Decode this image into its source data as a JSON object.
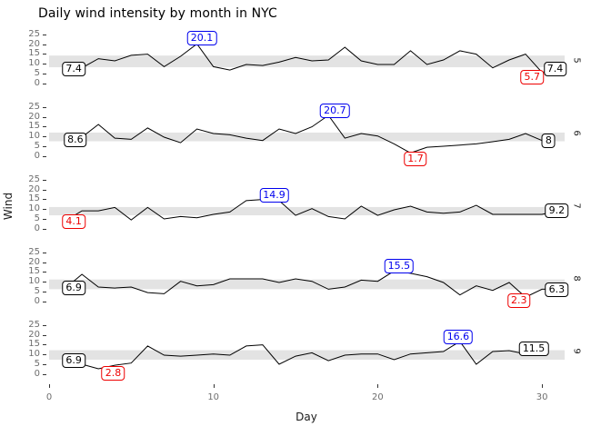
{
  "title": "Daily wind intensity by month in NYC",
  "colors": {
    "blue": "#0000ee",
    "red": "#ee0000",
    "black": "#000000",
    "band": "#e3e3e3",
    "line": "#000000",
    "axis_text": "#6e6e6e",
    "tick_mark": "#333333",
    "strip_text": "#1a1a1a"
  },
  "chart_data": {
    "type": "line",
    "title": "Daily wind intensity by month in NYC",
    "xlabel": "Day",
    "ylabel": "Wind",
    "x_ticks": [
      0,
      10,
      20,
      30
    ],
    "y_ticks": [
      25,
      20,
      15,
      10,
      5,
      0
    ],
    "x_range": [
      0,
      31.3
    ],
    "y_range": [
      -5,
      28.5
    ],
    "grid": "off",
    "legend": "none",
    "facet_side": "right",
    "facets": [
      {
        "month": "5",
        "days": "1-31",
        "values": [
          7.4,
          8.0,
          12.6,
          11.5,
          14.3,
          14.9,
          8.6,
          13.8,
          20.1,
          8.6,
          6.9,
          9.7,
          9.2,
          10.9,
          13.2,
          11.5,
          12.0,
          18.4,
          11.5,
          9.7,
          9.7,
          16.6,
          9.7,
          12.0,
          16.6,
          14.9,
          8.0,
          12.0,
          14.9,
          5.7,
          7.4
        ],
        "band": [
          8.3,
          14.2
        ],
        "labels": [
          {
            "text": "7.4",
            "kind": "first",
            "color": "black",
            "day": 1,
            "value": 7.4,
            "cx": 1.5,
            "cy": 7.2
          },
          {
            "text": "20.1",
            "kind": "max",
            "color": "blue",
            "day": 9,
            "value": 20.1,
            "cx": 9.3,
            "cy": 23.0
          },
          {
            "text": "5.7",
            "kind": "min",
            "color": "red",
            "day": 30,
            "value": 5.7,
            "cx": 29.4,
            "cy": 3.4
          },
          {
            "text": "7.4",
            "kind": "last",
            "color": "black",
            "day": 31,
            "value": 7.4,
            "cx": 30.8,
            "cy": 7.3
          }
        ]
      },
      {
        "month": "6",
        "days": "1-30",
        "values": [
          8.6,
          9.7,
          16.1,
          9.2,
          8.6,
          14.3,
          9.7,
          6.9,
          13.8,
          11.5,
          10.9,
          9.2,
          8.0,
          13.8,
          11.5,
          14.9,
          20.7,
          9.2,
          11.5,
          10.3,
          6.3,
          1.7,
          4.6,
          5.1,
          5.7,
          6.3,
          7.4,
          8.6,
          11.5,
          8.0
        ],
        "band": [
          7.6,
          12.0
        ],
        "labels": [
          {
            "text": "8.6",
            "kind": "first",
            "color": "black",
            "day": 1,
            "value": 8.6,
            "cx": 1.6,
            "cy": 8.4
          },
          {
            "text": "20.7",
            "kind": "max",
            "color": "blue",
            "day": 17,
            "value": 20.7,
            "cx": 17.4,
            "cy": 23.2
          },
          {
            "text": "1.7",
            "kind": "min",
            "color": "red",
            "day": 22,
            "value": 1.7,
            "cx": 22.3,
            "cy": -1.2
          },
          {
            "text": "8",
            "kind": "last",
            "color": "black",
            "day": 30,
            "value": 8.0,
            "cx": 30.4,
            "cy": 7.9
          }
        ]
      },
      {
        "month": "7",
        "days": "1-31",
        "values": [
          4.1,
          9.2,
          9.2,
          10.9,
          4.6,
          10.9,
          5.1,
          6.3,
          5.7,
          7.4,
          8.6,
          14.3,
          14.9,
          14.3,
          6.9,
          10.3,
          6.3,
          5.1,
          11.5,
          6.9,
          9.7,
          11.5,
          8.6,
          8.0,
          8.6,
          12.0,
          7.4,
          7.4,
          7.4,
          7.4,
          9.2
        ],
        "band": [
          6.9,
          11.1
        ],
        "labels": [
          {
            "text": "4.1",
            "kind": "first-min",
            "color": "red",
            "day": 1,
            "value": 4.1,
            "cx": 1.5,
            "cy": 3.9
          },
          {
            "text": "14.9",
            "kind": "max",
            "color": "blue",
            "day": 13,
            "value": 14.9,
            "cx": 13.7,
            "cy": 16.9
          },
          {
            "text": "9.2",
            "kind": "last",
            "color": "black",
            "day": 31,
            "value": 9.2,
            "cx": 30.9,
            "cy": 9.1
          }
        ]
      },
      {
        "month": "8",
        "days": "1-31",
        "values": [
          6.9,
          13.8,
          7.4,
          6.9,
          7.4,
          4.6,
          4.0,
          10.3,
          8.0,
          8.6,
          11.5,
          11.5,
          11.5,
          9.7,
          11.5,
          10.3,
          6.3,
          7.4,
          10.9,
          10.3,
          15.5,
          14.3,
          12.6,
          9.7,
          3.4,
          8.0,
          5.7,
          9.7,
          2.3,
          6.3,
          6.3
        ],
        "band": [
          6.3,
          11.2
        ],
        "labels": [
          {
            "text": "6.9",
            "kind": "first",
            "color": "black",
            "day": 1,
            "value": 6.9,
            "cx": 1.5,
            "cy": 6.8
          },
          {
            "text": "15.5",
            "kind": "max",
            "color": "blue",
            "day": 21,
            "value": 15.5,
            "cx": 21.3,
            "cy": 18.0
          },
          {
            "text": "2.3",
            "kind": "min",
            "color": "red",
            "day": 29,
            "value": 2.3,
            "cx": 28.6,
            "cy": 0.6
          },
          {
            "text": "6.3",
            "kind": "last",
            "color": "black",
            "day": 31,
            "value": 6.3,
            "cx": 30.9,
            "cy": 6.2
          }
        ]
      },
      {
        "month": "9",
        "days": "1-30",
        "values": [
          6.9,
          5.1,
          2.8,
          4.6,
          5.7,
          14.3,
          9.7,
          9.2,
          9.7,
          10.3,
          9.7,
          14.3,
          14.9,
          5.1,
          9.2,
          10.9,
          6.9,
          9.7,
          10.3,
          10.3,
          7.4,
          10.3,
          10.9,
          11.5,
          16.6,
          5.1,
          11.5,
          12.0,
          10.3,
          11.5
        ],
        "band": [
          7.4,
          12.2
        ],
        "labels": [
          {
            "text": "6.9",
            "kind": "first",
            "color": "black",
            "day": 1,
            "value": 6.9,
            "cx": 1.5,
            "cy": 6.8
          },
          {
            "text": "2.8",
            "kind": "min",
            "color": "red",
            "day": 3,
            "value": 2.8,
            "cx": 3.9,
            "cy": 0.7
          },
          {
            "text": "16.6",
            "kind": "max",
            "color": "blue",
            "day": 25,
            "value": 16.6,
            "cx": 24.9,
            "cy": 18.8
          },
          {
            "text": "11.5",
            "kind": "last",
            "color": "black",
            "day": 30,
            "value": 11.5,
            "cx": 29.5,
            "cy": 12.9
          }
        ]
      }
    ]
  }
}
